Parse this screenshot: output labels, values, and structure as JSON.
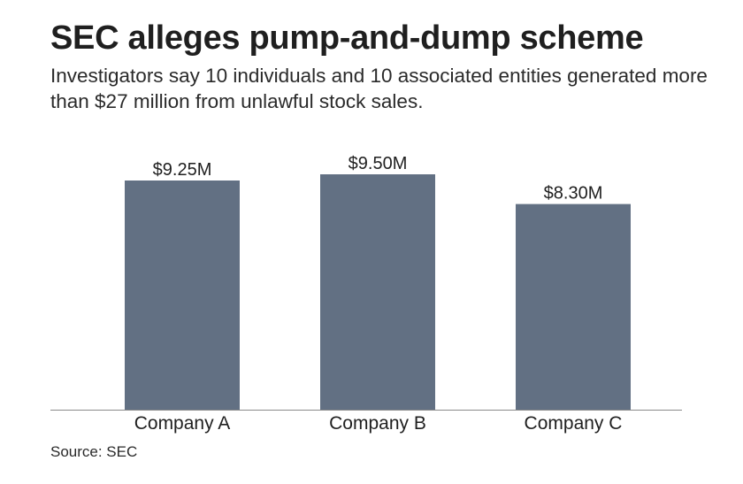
{
  "header": {
    "title": "SEC alleges pump-and-dump scheme",
    "subtitle": "Investigators say 10 individuals and 10 associated entities generated more than $27 million from unlawful stock sales."
  },
  "footer": {
    "source": "Source: SEC"
  },
  "colors": {
    "bar": "#627083",
    "axis": "#8a8a8a"
  },
  "chart_data": {
    "type": "bar",
    "title": "SEC alleges pump-and-dump scheme",
    "subtitle": "Investigators say 10 individuals and 10 associated entities generated more than $27 million from unlawful stock sales.",
    "categories": [
      "Company A",
      "Company B",
      "Company C"
    ],
    "values": [
      9.25,
      9.5,
      8.3
    ],
    "value_labels": [
      "$9.25M",
      "$9.50M",
      "$8.30M"
    ],
    "xlabel": "",
    "ylabel": "",
    "ylim": [
      0,
      9.5
    ],
    "grid": false,
    "legend": "none"
  }
}
